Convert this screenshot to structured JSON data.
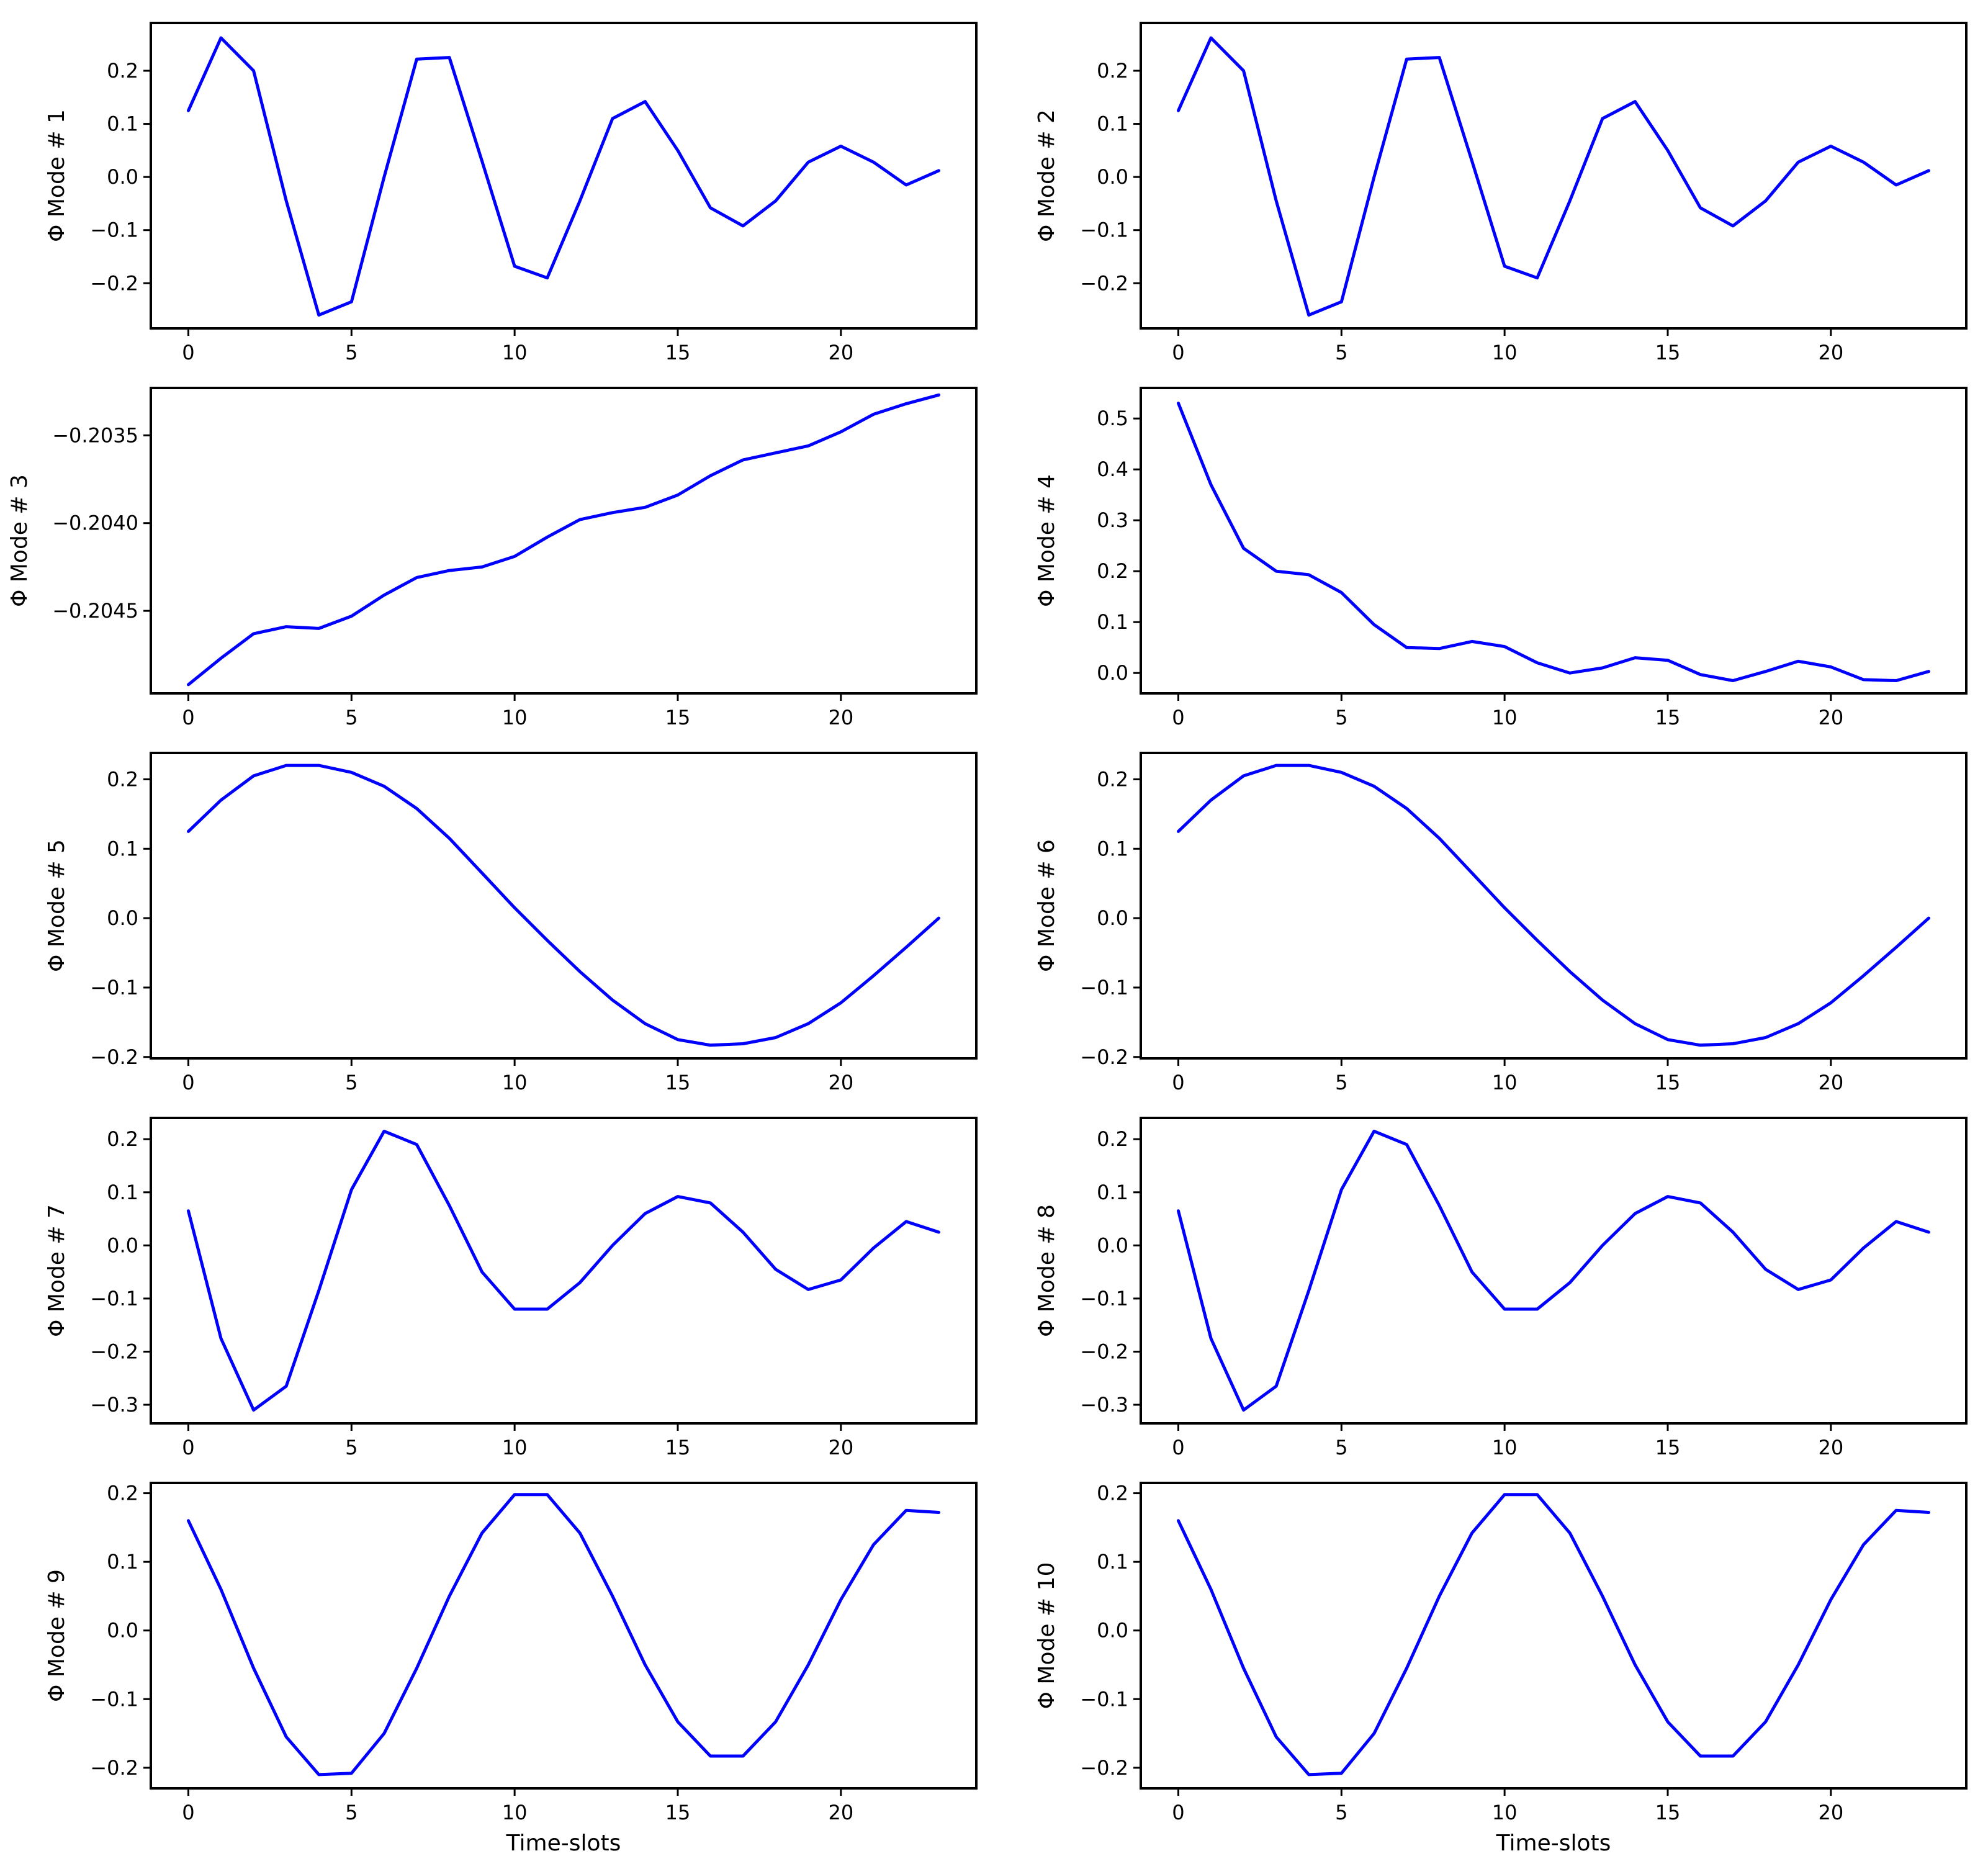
{
  "figure": {
    "series_color": "#0000ff",
    "axis_color": "#000000"
  },
  "chart_data": [
    {
      "type": "line",
      "ylabel": "Φ Mode # 1",
      "xlabel": "",
      "xlim": [
        -1.15,
        24.15
      ],
      "ylim": [
        -0.285,
        0.29
      ],
      "xticks": [
        0,
        5,
        10,
        15,
        20
      ],
      "xtick_labels": [
        "0",
        "5",
        "10",
        "15",
        "20"
      ],
      "yticks": [
        -0.2,
        -0.1,
        0.0,
        0.1,
        0.2
      ],
      "ytick_labels": [
        "−0.2",
        "−0.1",
        "0.0",
        "0.1",
        "0.2"
      ],
      "x": [
        0,
        1,
        2,
        3,
        4,
        5,
        6,
        7,
        8,
        9,
        10,
        11,
        12,
        13,
        14,
        15,
        16,
        17,
        18,
        19,
        20,
        21,
        22,
        23
      ],
      "series": [
        {
          "name": "Mode 1",
          "values": [
            0.125,
            0.262,
            0.2,
            -0.045,
            -0.26,
            -0.235,
            0.0,
            0.222,
            0.225,
            0.03,
            -0.168,
            -0.19,
            -0.045,
            0.11,
            0.142,
            0.05,
            -0.058,
            -0.092,
            -0.045,
            0.028,
            0.058,
            0.028,
            -0.015,
            0.012
          ]
        }
      ]
    },
    {
      "type": "line",
      "ylabel": "Φ Mode # 2",
      "xlabel": "",
      "xlim": [
        -1.15,
        24.15
      ],
      "ylim": [
        -0.285,
        0.29
      ],
      "xticks": [
        0,
        5,
        10,
        15,
        20
      ],
      "xtick_labels": [
        "0",
        "5",
        "10",
        "15",
        "20"
      ],
      "yticks": [
        -0.2,
        -0.1,
        0.0,
        0.1,
        0.2
      ],
      "ytick_labels": [
        "−0.2",
        "−0.1",
        "0.0",
        "0.1",
        "0.2"
      ],
      "x": [
        0,
        1,
        2,
        3,
        4,
        5,
        6,
        7,
        8,
        9,
        10,
        11,
        12,
        13,
        14,
        15,
        16,
        17,
        18,
        19,
        20,
        21,
        22,
        23
      ],
      "series": [
        {
          "name": "Mode 2",
          "values": [
            0.125,
            0.262,
            0.2,
            -0.045,
            -0.26,
            -0.235,
            0.0,
            0.222,
            0.225,
            0.03,
            -0.168,
            -0.19,
            -0.045,
            0.11,
            0.142,
            0.05,
            -0.058,
            -0.092,
            -0.045,
            0.028,
            0.058,
            0.028,
            -0.015,
            0.012
          ]
        }
      ]
    },
    {
      "type": "line",
      "ylabel": "Φ Mode # 3",
      "xlabel": "",
      "xlim": [
        -1.15,
        24.15
      ],
      "ylim": [
        -0.20497,
        -0.20323
      ],
      "xticks": [
        0,
        5,
        10,
        15,
        20
      ],
      "xtick_labels": [
        "0",
        "5",
        "10",
        "15",
        "20"
      ],
      "yticks": [
        -0.2045,
        -0.204,
        -0.2035
      ],
      "ytick_labels": [
        "−0.2045",
        "−0.2040",
        "−0.2035"
      ],
      "x": [
        0,
        1,
        2,
        3,
        4,
        5,
        6,
        7,
        8,
        9,
        10,
        11,
        12,
        13,
        14,
        15,
        16,
        17,
        18,
        19,
        20,
        21,
        22,
        23
      ],
      "series": [
        {
          "name": "Mode 3",
          "values": [
            -0.20492,
            -0.20477,
            -0.20463,
            -0.20459,
            -0.2046,
            -0.20453,
            -0.20441,
            -0.20431,
            -0.20427,
            -0.20425,
            -0.20419,
            -0.20408,
            -0.20398,
            -0.20394,
            -0.20391,
            -0.20384,
            -0.20373,
            -0.20364,
            -0.2036,
            -0.20356,
            -0.20348,
            -0.20338,
            -0.20332,
            -0.20327
          ]
        }
      ]
    },
    {
      "type": "line",
      "ylabel": "Φ Mode # 4",
      "xlabel": "",
      "xlim": [
        -1.15,
        24.15
      ],
      "ylim": [
        -0.04,
        0.56
      ],
      "xticks": [
        0,
        5,
        10,
        15,
        20
      ],
      "xtick_labels": [
        "0",
        "5",
        "10",
        "15",
        "20"
      ],
      "yticks": [
        0.0,
        0.1,
        0.2,
        0.3,
        0.4,
        0.5
      ],
      "ytick_labels": [
        "0.0",
        "0.1",
        "0.2",
        "0.3",
        "0.4",
        "0.5"
      ],
      "x": [
        0,
        1,
        2,
        3,
        4,
        5,
        6,
        7,
        8,
        9,
        10,
        11,
        12,
        13,
        14,
        15,
        16,
        17,
        18,
        19,
        20,
        21,
        22,
        23
      ],
      "series": [
        {
          "name": "Mode 4",
          "values": [
            0.53,
            0.37,
            0.245,
            0.2,
            0.193,
            0.158,
            0.095,
            0.05,
            0.048,
            0.062,
            0.052,
            0.02,
            0.0,
            0.01,
            0.03,
            0.025,
            -0.003,
            -0.015,
            0.003,
            0.023,
            0.012,
            -0.013,
            -0.015,
            0.003
          ]
        }
      ]
    },
    {
      "type": "line",
      "ylabel": "Φ Mode # 5",
      "xlabel": "",
      "xlim": [
        -1.15,
        24.15
      ],
      "ylim": [
        -0.202,
        0.238
      ],
      "xticks": [
        0,
        5,
        10,
        15,
        20
      ],
      "xtick_labels": [
        "0",
        "5",
        "10",
        "15",
        "20"
      ],
      "yticks": [
        -0.2,
        -0.1,
        0.0,
        0.1,
        0.2
      ],
      "ytick_labels": [
        "−0.2",
        "−0.1",
        "0.0",
        "0.1",
        "0.2"
      ],
      "x": [
        0,
        1,
        2,
        3,
        4,
        5,
        6,
        7,
        8,
        9,
        10,
        11,
        12,
        13,
        14,
        15,
        16,
        17,
        18,
        19,
        20,
        21,
        22,
        23
      ],
      "series": [
        {
          "name": "Mode 5",
          "values": [
            0.125,
            0.17,
            0.205,
            0.22,
            0.22,
            0.21,
            0.19,
            0.158,
            0.115,
            0.065,
            0.015,
            -0.032,
            -0.077,
            -0.118,
            -0.152,
            -0.175,
            -0.183,
            -0.181,
            -0.172,
            -0.152,
            -0.122,
            -0.083,
            -0.042,
            0.0
          ]
        }
      ]
    },
    {
      "type": "line",
      "ylabel": "Φ Mode # 6",
      "xlabel": "",
      "xlim": [
        -1.15,
        24.15
      ],
      "ylim": [
        -0.202,
        0.238
      ],
      "xticks": [
        0,
        5,
        10,
        15,
        20
      ],
      "xtick_labels": [
        "0",
        "5",
        "10",
        "15",
        "20"
      ],
      "yticks": [
        -0.2,
        -0.1,
        0.0,
        0.1,
        0.2
      ],
      "ytick_labels": [
        "−0.2",
        "−0.1",
        "0.0",
        "0.1",
        "0.2"
      ],
      "x": [
        0,
        1,
        2,
        3,
        4,
        5,
        6,
        7,
        8,
        9,
        10,
        11,
        12,
        13,
        14,
        15,
        16,
        17,
        18,
        19,
        20,
        21,
        22,
        23
      ],
      "series": [
        {
          "name": "Mode 6",
          "values": [
            0.125,
            0.17,
            0.205,
            0.22,
            0.22,
            0.21,
            0.19,
            0.158,
            0.115,
            0.065,
            0.015,
            -0.032,
            -0.077,
            -0.118,
            -0.152,
            -0.175,
            -0.183,
            -0.181,
            -0.172,
            -0.152,
            -0.122,
            -0.083,
            -0.042,
            0.0
          ]
        }
      ]
    },
    {
      "type": "line",
      "ylabel": "Φ Mode # 7",
      "xlabel": "",
      "xlim": [
        -1.15,
        24.15
      ],
      "ylim": [
        -0.335,
        0.24
      ],
      "xticks": [
        0,
        5,
        10,
        15,
        20
      ],
      "xtick_labels": [
        "0",
        "5",
        "10",
        "15",
        "20"
      ],
      "yticks": [
        -0.3,
        -0.2,
        -0.1,
        0.0,
        0.1,
        0.2
      ],
      "ytick_labels": [
        "−0.3",
        "−0.2",
        "−0.1",
        "0.0",
        "0.1",
        "0.2"
      ],
      "x": [
        0,
        1,
        2,
        3,
        4,
        5,
        6,
        7,
        8,
        9,
        10,
        11,
        12,
        13,
        14,
        15,
        16,
        17,
        18,
        19,
        20,
        21,
        22,
        23
      ],
      "series": [
        {
          "name": "Mode 7",
          "values": [
            0.065,
            -0.175,
            -0.31,
            -0.265,
            -0.085,
            0.105,
            0.215,
            0.19,
            0.075,
            -0.05,
            -0.12,
            -0.12,
            -0.07,
            0.0,
            0.06,
            0.092,
            0.08,
            0.025,
            -0.045,
            -0.083,
            -0.065,
            -0.005,
            0.045,
            0.025
          ]
        }
      ]
    },
    {
      "type": "line",
      "ylabel": "Φ Mode # 8",
      "xlabel": "",
      "xlim": [
        -1.15,
        24.15
      ],
      "ylim": [
        -0.335,
        0.24
      ],
      "xticks": [
        0,
        5,
        10,
        15,
        20
      ],
      "xtick_labels": [
        "0",
        "5",
        "10",
        "15",
        "20"
      ],
      "yticks": [
        -0.3,
        -0.2,
        -0.1,
        0.0,
        0.1,
        0.2
      ],
      "ytick_labels": [
        "−0.3",
        "−0.2",
        "−0.1",
        "0.0",
        "0.1",
        "0.2"
      ],
      "x": [
        0,
        1,
        2,
        3,
        4,
        5,
        6,
        7,
        8,
        9,
        10,
        11,
        12,
        13,
        14,
        15,
        16,
        17,
        18,
        19,
        20,
        21,
        22,
        23
      ],
      "series": [
        {
          "name": "Mode 8",
          "values": [
            0.065,
            -0.175,
            -0.31,
            -0.265,
            -0.085,
            0.105,
            0.215,
            0.19,
            0.075,
            -0.05,
            -0.12,
            -0.12,
            -0.07,
            0.0,
            0.06,
            0.092,
            0.08,
            0.025,
            -0.045,
            -0.083,
            -0.065,
            -0.005,
            0.045,
            0.025
          ]
        }
      ]
    },
    {
      "type": "line",
      "ylabel": "Φ Mode # 9",
      "xlabel": "Time-slots",
      "xlim": [
        -1.15,
        24.15
      ],
      "ylim": [
        -0.23,
        0.215
      ],
      "xticks": [
        0,
        5,
        10,
        15,
        20
      ],
      "xtick_labels": [
        "0",
        "5",
        "10",
        "15",
        "20"
      ],
      "yticks": [
        -0.2,
        -0.1,
        0.0,
        0.1,
        0.2
      ],
      "ytick_labels": [
        "−0.2",
        "−0.1",
        "0.0",
        "0.1",
        "0.2"
      ],
      "x": [
        0,
        1,
        2,
        3,
        4,
        5,
        6,
        7,
        8,
        9,
        10,
        11,
        12,
        13,
        14,
        15,
        16,
        17,
        18,
        19,
        20,
        21,
        22,
        23
      ],
      "series": [
        {
          "name": "Mode 9",
          "values": [
            0.16,
            0.06,
            -0.055,
            -0.155,
            -0.21,
            -0.208,
            -0.15,
            -0.055,
            0.05,
            0.142,
            0.198,
            0.198,
            0.142,
            0.05,
            -0.05,
            -0.133,
            -0.183,
            -0.183,
            -0.133,
            -0.05,
            0.045,
            0.125,
            0.175,
            0.172
          ]
        }
      ]
    },
    {
      "type": "line",
      "ylabel": "Φ Mode # 10",
      "xlabel": "Time-slots",
      "xlim": [
        -1.15,
        24.15
      ],
      "ylim": [
        -0.23,
        0.215
      ],
      "xticks": [
        0,
        5,
        10,
        15,
        20
      ],
      "xtick_labels": [
        "0",
        "5",
        "10",
        "15",
        "20"
      ],
      "yticks": [
        -0.2,
        -0.1,
        0.0,
        0.1,
        0.2
      ],
      "ytick_labels": [
        "−0.2",
        "−0.1",
        "0.0",
        "0.1",
        "0.2"
      ],
      "x": [
        0,
        1,
        2,
        3,
        4,
        5,
        6,
        7,
        8,
        9,
        10,
        11,
        12,
        13,
        14,
        15,
        16,
        17,
        18,
        19,
        20,
        21,
        22,
        23
      ],
      "series": [
        {
          "name": "Mode 10",
          "values": [
            0.16,
            0.06,
            -0.055,
            -0.155,
            -0.21,
            -0.208,
            -0.15,
            -0.055,
            0.05,
            0.142,
            0.198,
            0.198,
            0.142,
            0.05,
            -0.05,
            -0.133,
            -0.183,
            -0.183,
            -0.133,
            -0.05,
            0.045,
            0.125,
            0.175,
            0.172
          ]
        }
      ]
    }
  ]
}
